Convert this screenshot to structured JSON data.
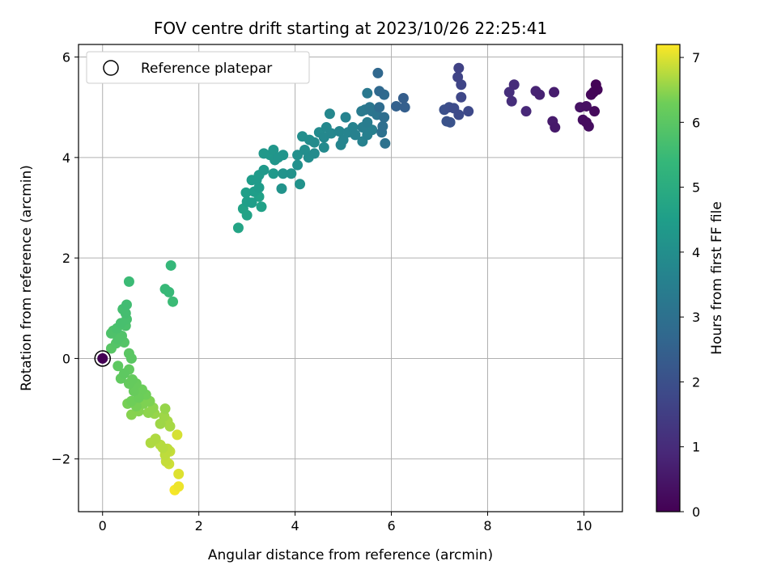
{
  "chart_data": {
    "type": "scatter",
    "title": "FOV centre drift starting at 2023/10/26 22:25:41",
    "xlabel": "Angular distance from reference (arcmin)",
    "ylabel": "Rotation from reference (arcmin)",
    "xlim": [
      -0.5,
      10.8
    ],
    "ylim": [
      -3.05,
      6.25
    ],
    "xticks": [
      0,
      2,
      4,
      6,
      8,
      10
    ],
    "yticks": [
      -2,
      0,
      2,
      4,
      6
    ],
    "xtick_labels": [
      "0",
      "2",
      "4",
      "6",
      "8",
      "10"
    ],
    "ytick_labels": [
      "−2",
      "0",
      "2",
      "4",
      "6"
    ],
    "grid": true,
    "legend": {
      "position": "upper-left",
      "entries": [
        "Reference platepar"
      ]
    },
    "reference_point": {
      "x": 0,
      "y": 0,
      "value": 0
    },
    "colorbar": {
      "label": "Hours from first FF file",
      "range": [
        0,
        7.2
      ],
      "ticks": [
        0,
        1,
        2,
        3,
        4,
        5,
        6,
        7
      ],
      "tick_labels": [
        "0",
        "1",
        "2",
        "3",
        "4",
        "5",
        "6",
        "7"
      ],
      "colormap": "viridis"
    },
    "points": [
      {
        "x": 10.25,
        "y": 5.45,
        "c": 0.05
      },
      {
        "x": 10.2,
        "y": 5.3,
        "c": 0.1
      },
      {
        "x": 10.28,
        "y": 5.35,
        "c": 0.12
      },
      {
        "x": 10.15,
        "y": 5.25,
        "c": 0.15
      },
      {
        "x": 10.22,
        "y": 4.92,
        "c": 0.2
      },
      {
        "x": 10.05,
        "y": 4.7,
        "c": 0.25
      },
      {
        "x": 10.1,
        "y": 4.62,
        "c": 0.28
      },
      {
        "x": 9.98,
        "y": 4.75,
        "c": 0.3
      },
      {
        "x": 10.05,
        "y": 5.02,
        "c": 0.35
      },
      {
        "x": 9.92,
        "y": 5.0,
        "c": 0.4
      },
      {
        "x": 9.4,
        "y": 4.6,
        "c": 0.55
      },
      {
        "x": 9.35,
        "y": 4.72,
        "c": 0.6
      },
      {
        "x": 9.38,
        "y": 5.3,
        "c": 0.65
      },
      {
        "x": 9.08,
        "y": 5.25,
        "c": 0.75
      },
      {
        "x": 9.0,
        "y": 5.32,
        "c": 0.8
      },
      {
        "x": 8.8,
        "y": 4.92,
        "c": 0.9
      },
      {
        "x": 8.55,
        "y": 5.45,
        "c": 1.0
      },
      {
        "x": 8.5,
        "y": 5.12,
        "c": 1.05
      },
      {
        "x": 8.45,
        "y": 5.3,
        "c": 1.1
      },
      {
        "x": 7.4,
        "y": 5.78,
        "c": 1.6
      },
      {
        "x": 7.38,
        "y": 5.6,
        "c": 1.65
      },
      {
        "x": 7.45,
        "y": 5.45,
        "c": 1.7
      },
      {
        "x": 7.45,
        "y": 5.2,
        "c": 1.75
      },
      {
        "x": 7.6,
        "y": 4.92,
        "c": 1.8
      },
      {
        "x": 7.4,
        "y": 4.85,
        "c": 1.85
      },
      {
        "x": 7.3,
        "y": 4.98,
        "c": 1.9
      },
      {
        "x": 7.2,
        "y": 5.0,
        "c": 1.95
      },
      {
        "x": 7.1,
        "y": 4.95,
        "c": 2.0
      },
      {
        "x": 7.15,
        "y": 4.72,
        "c": 2.05
      },
      {
        "x": 7.22,
        "y": 4.7,
        "c": 2.1
      },
      {
        "x": 6.25,
        "y": 5.18,
        "c": 2.4
      },
      {
        "x": 6.28,
        "y": 5.0,
        "c": 2.45
      },
      {
        "x": 6.1,
        "y": 5.02,
        "c": 2.5
      },
      {
        "x": 5.72,
        "y": 5.68,
        "c": 2.7
      },
      {
        "x": 5.75,
        "y": 5.32,
        "c": 2.75
      },
      {
        "x": 5.85,
        "y": 5.25,
        "c": 2.8
      },
      {
        "x": 5.75,
        "y": 5.0,
        "c": 2.85
      },
      {
        "x": 5.85,
        "y": 4.8,
        "c": 2.9
      },
      {
        "x": 5.82,
        "y": 4.62,
        "c": 2.95
      },
      {
        "x": 5.8,
        "y": 4.5,
        "c": 3.0
      },
      {
        "x": 5.87,
        "y": 4.28,
        "c": 3.05
      },
      {
        "x": 5.7,
        "y": 4.85,
        "c": 3.1
      },
      {
        "x": 5.6,
        "y": 4.92,
        "c": 3.15
      },
      {
        "x": 5.55,
        "y": 5.0,
        "c": 3.2
      },
      {
        "x": 5.5,
        "y": 5.28,
        "c": 3.25
      },
      {
        "x": 5.45,
        "y": 4.95,
        "c": 3.3
      },
      {
        "x": 5.38,
        "y": 4.92,
        "c": 3.35
      },
      {
        "x": 5.5,
        "y": 4.7,
        "c": 3.4
      },
      {
        "x": 5.4,
        "y": 4.6,
        "c": 3.45
      },
      {
        "x": 5.6,
        "y": 4.55,
        "c": 3.5
      },
      {
        "x": 5.5,
        "y": 4.45,
        "c": 3.5
      },
      {
        "x": 5.25,
        "y": 4.45,
        "c": 3.55
      },
      {
        "x": 5.4,
        "y": 4.32,
        "c": 3.55
      },
      {
        "x": 5.2,
        "y": 4.6,
        "c": 3.6
      },
      {
        "x": 5.05,
        "y": 4.8,
        "c": 3.6
      },
      {
        "x": 5.1,
        "y": 4.5,
        "c": 3.65
      },
      {
        "x": 5.0,
        "y": 4.35,
        "c": 3.65
      },
      {
        "x": 4.95,
        "y": 4.25,
        "c": 3.7
      },
      {
        "x": 4.92,
        "y": 4.52,
        "c": 3.7
      },
      {
        "x": 4.72,
        "y": 4.87,
        "c": 3.75
      },
      {
        "x": 4.75,
        "y": 4.48,
        "c": 3.75
      },
      {
        "x": 4.65,
        "y": 4.6,
        "c": 3.8
      },
      {
        "x": 4.6,
        "y": 4.4,
        "c": 3.8
      },
      {
        "x": 4.6,
        "y": 4.2,
        "c": 3.85
      },
      {
        "x": 4.5,
        "y": 4.5,
        "c": 3.85
      },
      {
        "x": 4.4,
        "y": 4.3,
        "c": 3.9
      },
      {
        "x": 4.4,
        "y": 4.08,
        "c": 3.9
      },
      {
        "x": 4.3,
        "y": 4.35,
        "c": 3.95
      },
      {
        "x": 4.28,
        "y": 4.0,
        "c": 3.95
      },
      {
        "x": 4.2,
        "y": 4.15,
        "c": 4.0
      },
      {
        "x": 4.15,
        "y": 4.42,
        "c": 4.0
      },
      {
        "x": 4.05,
        "y": 4.05,
        "c": 4.05
      },
      {
        "x": 4.05,
        "y": 3.85,
        "c": 4.05
      },
      {
        "x": 4.1,
        "y": 3.47,
        "c": 4.1
      },
      {
        "x": 3.92,
        "y": 3.68,
        "c": 4.1
      },
      {
        "x": 3.75,
        "y": 3.68,
        "c": 4.15
      },
      {
        "x": 3.72,
        "y": 3.38,
        "c": 4.15
      },
      {
        "x": 3.75,
        "y": 4.05,
        "c": 4.2
      },
      {
        "x": 3.65,
        "y": 4.0,
        "c": 4.2
      },
      {
        "x": 3.55,
        "y": 4.15,
        "c": 4.25
      },
      {
        "x": 3.58,
        "y": 3.95,
        "c": 4.25
      },
      {
        "x": 3.48,
        "y": 4.05,
        "c": 4.3
      },
      {
        "x": 3.35,
        "y": 4.08,
        "c": 4.3
      },
      {
        "x": 3.55,
        "y": 3.68,
        "c": 4.35
      },
      {
        "x": 3.35,
        "y": 3.75,
        "c": 4.35
      },
      {
        "x": 3.25,
        "y": 3.65,
        "c": 4.4
      },
      {
        "x": 3.2,
        "y": 3.55,
        "c": 4.4
      },
      {
        "x": 3.25,
        "y": 3.4,
        "c": 4.45
      },
      {
        "x": 3.1,
        "y": 3.55,
        "c": 4.45
      },
      {
        "x": 3.15,
        "y": 3.32,
        "c": 4.5
      },
      {
        "x": 3.1,
        "y": 3.1,
        "c": 4.5
      },
      {
        "x": 2.98,
        "y": 3.3,
        "c": 4.55
      },
      {
        "x": 3.0,
        "y": 3.12,
        "c": 4.55
      },
      {
        "x": 3.25,
        "y": 3.22,
        "c": 4.6
      },
      {
        "x": 3.3,
        "y": 3.02,
        "c": 4.6
      },
      {
        "x": 2.92,
        "y": 2.98,
        "c": 4.65
      },
      {
        "x": 3.0,
        "y": 2.85,
        "c": 4.65
      },
      {
        "x": 2.82,
        "y": 2.6,
        "c": 4.7
      },
      {
        "x": 1.42,
        "y": 1.85,
        "c": 5.4
      },
      {
        "x": 1.3,
        "y": 1.38,
        "c": 5.45
      },
      {
        "x": 1.38,
        "y": 1.32,
        "c": 5.45
      },
      {
        "x": 1.46,
        "y": 1.13,
        "c": 5.5
      },
      {
        "x": 0.55,
        "y": 1.53,
        "c": 5.5
      },
      {
        "x": 0.5,
        "y": 1.07,
        "c": 5.6
      },
      {
        "x": 0.42,
        "y": 0.98,
        "c": 5.65
      },
      {
        "x": 0.48,
        "y": 0.9,
        "c": 5.65
      },
      {
        "x": 0.5,
        "y": 0.78,
        "c": 5.7
      },
      {
        "x": 0.38,
        "y": 0.7,
        "c": 5.7
      },
      {
        "x": 0.48,
        "y": 0.65,
        "c": 5.75
      },
      {
        "x": 0.3,
        "y": 0.6,
        "c": 5.75
      },
      {
        "x": 0.22,
        "y": 0.55,
        "c": 5.8
      },
      {
        "x": 0.18,
        "y": 0.5,
        "c": 5.8
      },
      {
        "x": 0.4,
        "y": 0.45,
        "c": 5.85
      },
      {
        "x": 0.32,
        "y": 0.38,
        "c": 5.85
      },
      {
        "x": 0.45,
        "y": 0.32,
        "c": 5.9
      },
      {
        "x": 0.28,
        "y": 0.3,
        "c": 5.9
      },
      {
        "x": 0.18,
        "y": 0.2,
        "c": 5.95
      },
      {
        "x": 0.55,
        "y": 0.1,
        "c": 6.0
      },
      {
        "x": 0.6,
        "y": 0.0,
        "c": 6.0
      },
      {
        "x": 0.32,
        "y": -0.15,
        "c": 6.05
      },
      {
        "x": 0.45,
        "y": -0.3,
        "c": 6.05
      },
      {
        "x": 0.55,
        "y": -0.22,
        "c": 6.1
      },
      {
        "x": 0.38,
        "y": -0.4,
        "c": 6.1
      },
      {
        "x": 0.55,
        "y": -0.5,
        "c": 6.15
      },
      {
        "x": 0.62,
        "y": -0.42,
        "c": 6.15
      },
      {
        "x": 0.7,
        "y": -0.5,
        "c": 6.2
      },
      {
        "x": 0.65,
        "y": -0.65,
        "c": 6.2
      },
      {
        "x": 0.82,
        "y": -0.62,
        "c": 6.25
      },
      {
        "x": 0.75,
        "y": -0.78,
        "c": 6.25
      },
      {
        "x": 0.9,
        "y": -0.72,
        "c": 6.3
      },
      {
        "x": 0.6,
        "y": -0.85,
        "c": 6.3
      },
      {
        "x": 0.52,
        "y": -0.9,
        "c": 6.35
      },
      {
        "x": 0.7,
        "y": -0.95,
        "c": 6.35
      },
      {
        "x": 0.85,
        "y": -0.9,
        "c": 6.4
      },
      {
        "x": 0.98,
        "y": -0.85,
        "c": 6.4
      },
      {
        "x": 0.75,
        "y": -1.05,
        "c": 6.45
      },
      {
        "x": 0.6,
        "y": -1.12,
        "c": 6.45
      },
      {
        "x": 0.95,
        "y": -1.08,
        "c": 6.5
      },
      {
        "x": 1.05,
        "y": -0.98,
        "c": 6.5
      },
      {
        "x": 1.08,
        "y": -1.1,
        "c": 6.55
      },
      {
        "x": 1.3,
        "y": -1.0,
        "c": 6.55
      },
      {
        "x": 1.28,
        "y": -1.15,
        "c": 6.6
      },
      {
        "x": 1.2,
        "y": -1.3,
        "c": 6.6
      },
      {
        "x": 1.35,
        "y": -1.25,
        "c": 6.65
      },
      {
        "x": 1.4,
        "y": -1.35,
        "c": 6.65
      },
      {
        "x": 1.1,
        "y": -1.6,
        "c": 6.7
      },
      {
        "x": 1.0,
        "y": -1.68,
        "c": 6.7
      },
      {
        "x": 1.2,
        "y": -1.72,
        "c": 6.75
      },
      {
        "x": 1.25,
        "y": -1.78,
        "c": 6.75
      },
      {
        "x": 1.35,
        "y": -1.8,
        "c": 6.8
      },
      {
        "x": 1.3,
        "y": -1.92,
        "c": 6.8
      },
      {
        "x": 1.4,
        "y": -1.85,
        "c": 6.85
      },
      {
        "x": 1.32,
        "y": -2.05,
        "c": 6.85
      },
      {
        "x": 1.38,
        "y": -2.1,
        "c": 6.9
      },
      {
        "x": 1.55,
        "y": -1.52,
        "c": 6.95
      },
      {
        "x": 1.58,
        "y": -2.3,
        "c": 7.0
      },
      {
        "x": 1.58,
        "y": -2.55,
        "c": 7.1
      },
      {
        "x": 1.5,
        "y": -2.62,
        "c": 7.15
      }
    ]
  }
}
